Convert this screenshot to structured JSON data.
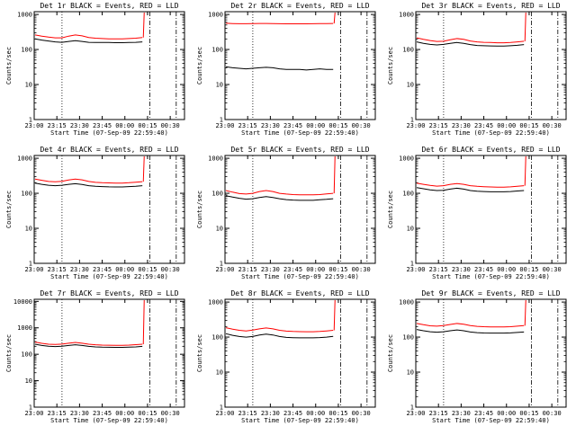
{
  "chart_data": [
    {
      "type": "line",
      "title": "Det 1r BLACK = Events, RED = LLD",
      "xlabel": "Start Time (07-Sep-09 22:59:40)",
      "ylabel": "Counts/sec",
      "x_ticks": [
        "23:00",
        "23:15",
        "23:30",
        "23:45",
        "00:00",
        "00:15",
        "00:30"
      ],
      "y_ticks": [
        "1",
        "10",
        "100",
        "1000"
      ],
      "yscale": "log",
      "ylim": [
        1,
        1200
      ],
      "series": [
        {
          "name": "Events",
          "color": "#000000",
          "values": [
            200,
            185,
            175,
            165,
            160,
            170,
            178,
            170,
            160,
            158,
            158,
            158,
            156,
            156,
            158,
            160,
            165
          ]
        },
        {
          "name": "LLD",
          "color": "#ff0000",
          "values": [
            260,
            240,
            225,
            215,
            215,
            240,
            260,
            245,
            220,
            210,
            205,
            202,
            200,
            200,
            205,
            210,
            220
          ]
        }
      ]
    },
    {
      "type": "line",
      "title": "Det 2r BLACK = Events, RED = LLD",
      "xlabel": "Start Time (07-Sep-09 22:59:40)",
      "ylabel": "Counts/sec",
      "x_ticks": [
        "23:00",
        "23:15",
        "23:30",
        "23:45",
        "00:00",
        "00:15",
        "00:30"
      ],
      "y_ticks": [
        "1",
        "10",
        "100",
        "1000"
      ],
      "yscale": "log",
      "ylim": [
        1,
        1200
      ],
      "series": [
        {
          "name": "Events",
          "color": "#000000",
          "values": [
            32,
            30,
            29,
            28,
            29,
            30,
            31,
            30,
            28,
            27,
            27,
            27,
            26,
            27,
            28,
            27,
            27
          ]
        },
        {
          "name": "LLD",
          "color": "#ff0000",
          "values": [
            560,
            550,
            545,
            545,
            548,
            552,
            555,
            550,
            545,
            542,
            540,
            540,
            542,
            545,
            548,
            550,
            555
          ]
        }
      ]
    },
    {
      "type": "line",
      "title": "Det 3r BLACK = Events, RED = LLD",
      "xlabel": "Start Time (07-Sep-09 22:59:40)",
      "ylabel": "Counts/sec",
      "x_ticks": [
        "23:00",
        "23:15",
        "23:30",
        "23:45",
        "00:00",
        "00:15",
        "00:30"
      ],
      "y_ticks": [
        "1",
        "10",
        "100",
        "1000"
      ],
      "yscale": "log",
      "ylim": [
        1,
        1200
      ],
      "series": [
        {
          "name": "Events",
          "color": "#000000",
          "values": [
            165,
            150,
            140,
            135,
            140,
            150,
            158,
            150,
            138,
            130,
            128,
            126,
            125,
            125,
            128,
            132,
            138
          ]
        },
        {
          "name": "LLD",
          "color": "#ff0000",
          "values": [
            215,
            195,
            180,
            170,
            172,
            190,
            205,
            195,
            175,
            165,
            160,
            158,
            155,
            155,
            158,
            165,
            172
          ]
        }
      ]
    },
    {
      "type": "line",
      "title": "Det 4r BLACK = Events, RED = LLD",
      "xlabel": "Start Time (07-Sep-09 22:59:40)",
      "ylabel": "Counts/sec",
      "x_ticks": [
        "23:00",
        "23:15",
        "23:30",
        "23:45",
        "00:00",
        "00:15",
        "00:30"
      ],
      "y_ticks": [
        "1",
        "10",
        "100",
        "1000"
      ],
      "yscale": "log",
      "ylim": [
        1,
        1200
      ],
      "series": [
        {
          "name": "Events",
          "color": "#000000",
          "values": [
            195,
            180,
            170,
            165,
            170,
            180,
            188,
            178,
            165,
            158,
            155,
            153,
            152,
            152,
            155,
            158,
            165
          ]
        },
        {
          "name": "LLD",
          "color": "#ff0000",
          "values": [
            255,
            235,
            218,
            212,
            220,
            240,
            255,
            242,
            218,
            205,
            200,
            198,
            196,
            196,
            200,
            208,
            215
          ]
        }
      ]
    },
    {
      "type": "line",
      "title": "Det 5r BLACK = Events, RED = LLD",
      "xlabel": "Start Time (07-Sep-09 22:59:40)",
      "ylabel": "Counts/sec",
      "x_ticks": [
        "23:00",
        "23:15",
        "23:30",
        "23:45",
        "00:00",
        "00:15",
        "00:30"
      ],
      "y_ticks": [
        "1",
        "10",
        "100",
        "1000"
      ],
      "yscale": "log",
      "ylim": [
        1,
        1200
      ],
      "series": [
        {
          "name": "Events",
          "color": "#000000",
          "values": [
            85,
            78,
            72,
            68,
            70,
            76,
            80,
            76,
            70,
            66,
            64,
            63,
            63,
            63,
            65,
            67,
            70
          ]
        },
        {
          "name": "LLD",
          "color": "#ff0000",
          "values": [
            120,
            108,
            98,
            95,
            100,
            112,
            120,
            112,
            100,
            95,
            92,
            90,
            90,
            90,
            92,
            96,
            100
          ]
        }
      ]
    },
    {
      "type": "line",
      "title": "Det 6r BLACK = Events, RED = LLD",
      "xlabel": "Start Time (07-Sep-09 22:59:40)",
      "ylabel": "Counts/sec",
      "x_ticks": [
        "23:00",
        "23:15",
        "23:30",
        "23:45",
        "00:00",
        "00:15",
        "00:30"
      ],
      "y_ticks": [
        "1",
        "10",
        "100",
        "1000"
      ],
      "yscale": "log",
      "ylim": [
        1,
        1200
      ],
      "series": [
        {
          "name": "Events",
          "color": "#000000",
          "values": [
            145,
            135,
            125,
            120,
            122,
            132,
            140,
            132,
            120,
            115,
            112,
            110,
            110,
            110,
            112,
            116,
            120
          ]
        },
        {
          "name": "LLD",
          "color": "#ff0000",
          "values": [
            195,
            180,
            168,
            160,
            165,
            180,
            190,
            180,
            165,
            158,
            154,
            152,
            150,
            150,
            153,
            158,
            165
          ]
        }
      ]
    },
    {
      "type": "line",
      "title": "Det 7r BLACK = Events, RED = LLD",
      "xlabel": "Start Time (07-Sep-09 22:59:40)",
      "ylabel": "Counts/sec",
      "x_ticks": [
        "23:00",
        "23:15",
        "23:30",
        "23:45",
        "00:00",
        "00:15",
        "00:30"
      ],
      "y_ticks": [
        "1",
        "10",
        "100",
        "1000",
        "10000"
      ],
      "yscale": "log",
      "ylim": [
        1,
        12000
      ],
      "series": [
        {
          "name": "Events",
          "color": "#000000",
          "values": [
            240,
            215,
            200,
            195,
            200,
            215,
            228,
            215,
            198,
            190,
            185,
            183,
            182,
            182,
            185,
            190,
            198
          ]
        },
        {
          "name": "LLD",
          "color": "#ff0000",
          "values": [
            290,
            260,
            240,
            235,
            242,
            262,
            280,
            262,
            240,
            228,
            222,
            220,
            218,
            218,
            222,
            230,
            240
          ]
        }
      ]
    },
    {
      "type": "line",
      "title": "Det 8r BLACK = Events, RED = LLD",
      "xlabel": "Start Time (07-Sep-09 22:59:40)",
      "ylabel": "Counts/sec",
      "x_ticks": [
        "23:00",
        "23:15",
        "23:30",
        "23:45",
        "00:00",
        "00:15",
        "00:30"
      ],
      "y_ticks": [
        "1",
        "10",
        "100",
        "1000"
      ],
      "yscale": "log",
      "ylim": [
        1,
        1200
      ],
      "series": [
        {
          "name": "Events",
          "color": "#000000",
          "values": [
            125,
            112,
            104,
            100,
            104,
            114,
            122,
            115,
            104,
            98,
            96,
            95,
            95,
            95,
            97,
            100,
            105
          ]
        },
        {
          "name": "LLD",
          "color": "#ff0000",
          "values": [
            185,
            168,
            156,
            150,
            158,
            172,
            182,
            172,
            156,
            148,
            145,
            143,
            142,
            142,
            145,
            150,
            156
          ]
        }
      ]
    },
    {
      "type": "line",
      "title": "Det 9r BLACK = Events, RED = LLD",
      "xlabel": "Start Time (07-Sep-09 22:59:40)",
      "ylabel": "Counts/sec",
      "x_ticks": [
        "23:00",
        "23:15",
        "23:30",
        "23:45",
        "00:00",
        "00:15",
        "00:30"
      ],
      "y_ticks": [
        "1",
        "10",
        "100",
        "1000"
      ],
      "yscale": "log",
      "ylim": [
        1,
        1200
      ],
      "series": [
        {
          "name": "Events",
          "color": "#000000",
          "values": [
            165,
            152,
            142,
            138,
            142,
            152,
            160,
            152,
            140,
            134,
            131,
            130,
            130,
            130,
            132,
            136,
            140
          ]
        },
        {
          "name": "LLD",
          "color": "#ff0000",
          "values": [
            245,
            225,
            210,
            205,
            212,
            230,
            245,
            232,
            212,
            203,
            198,
            196,
            195,
            195,
            198,
            205,
            212
          ]
        }
      ]
    }
  ]
}
